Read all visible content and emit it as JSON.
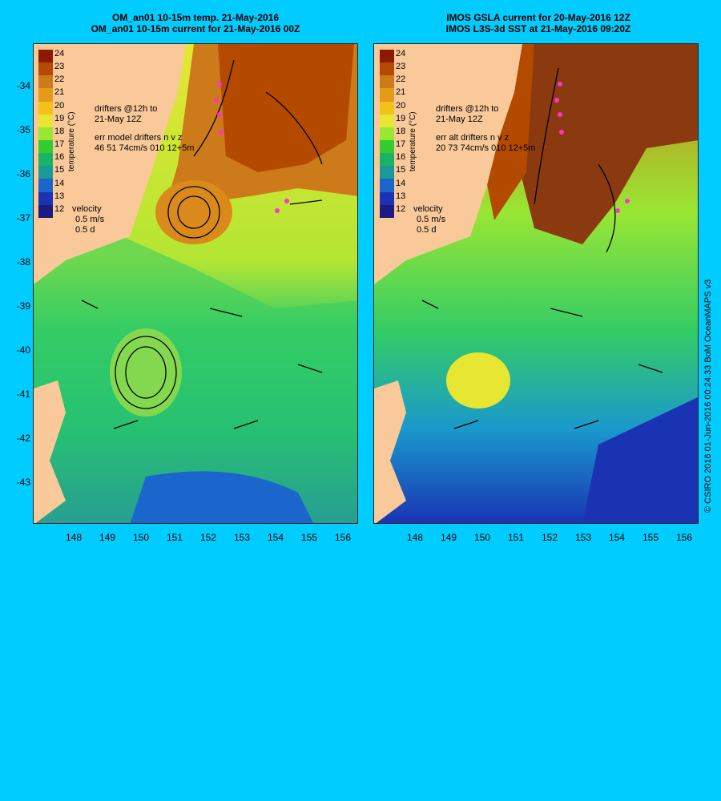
{
  "left_panel": {
    "title_line1": "OM_an01 10-15m temp. 21-May-2016",
    "title_line2": "OM_an01 10-15m current for 21-May-2016 00Z",
    "drifters_label1": "drifters @12h to",
    "drifters_label2": "21-May 12Z",
    "err_label1": "err model drifters n v z",
    "err_label2": "46 51 74cm/s 010 12+5m",
    "velocity_label": "velocity",
    "velocity_scale1": "0.5 m/s",
    "velocity_scale2": "0.5 d"
  },
  "right_panel": {
    "title_line1": "IMOS GSLA current for 20-May-2016 12Z",
    "title_line2": "IMOS L3S-3d SST at 21-May-2016 09:20Z",
    "drifters_label1": "drifters @12h to",
    "drifters_label2": "21-May 12Z",
    "err_label1": "err alt drifters n v z",
    "err_label2": "20 73 74cm/s 010 12+5m",
    "velocity_label": "velocity",
    "velocity_scale1": "0.5 m/s",
    "velocity_scale2": "0.5 d"
  },
  "colorbar": {
    "title": "temperature (°C)",
    "ticks": [
      "24",
      "23",
      "22",
      "21",
      "20",
      "19",
      "18",
      "17",
      "16",
      "15",
      "14",
      "13",
      "12"
    ],
    "colors": [
      "#8b1a00",
      "#b34a00",
      "#cc7a1a",
      "#e69a1a",
      "#f2c21a",
      "#e6e633",
      "#99e633",
      "#33cc33",
      "#1ab366",
      "#1a9999",
      "#1a66cc",
      "#1a33b3",
      "#1a1a80"
    ]
  },
  "y_axis_labels": [
    "-34",
    "-35",
    "-36",
    "-37",
    "-38",
    "-39",
    "-40",
    "-41",
    "-42",
    "-43"
  ],
  "x_axis_labels": [
    "148",
    "149",
    "150",
    "151",
    "152",
    "153",
    "154",
    "155",
    "156"
  ],
  "credit": "© CSIRO 2016  01-Jun-2016 00:24:33 BoM OceanMAPS v3",
  "colors": {
    "background": "#00ccff",
    "land": "#f9c99a",
    "drifter": "#ff33cc"
  }
}
